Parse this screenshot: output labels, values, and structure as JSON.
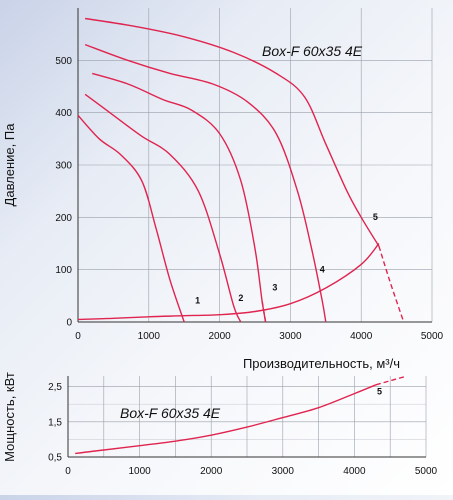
{
  "chart_data": [
    {
      "type": "line",
      "model_label": "Box-F 60x35 4E",
      "xlabel": "Производительность, м³/ч",
      "ylabel": "Давление, Па",
      "xlim": [
        0,
        5000
      ],
      "ylim": [
        0,
        600
      ],
      "xticks": [
        0,
        1000,
        2000,
        3000,
        4000,
        5000
      ],
      "yticks": [
        0,
        100,
        200,
        300,
        400,
        500
      ],
      "grid": true,
      "line_color": "#e0244f",
      "series": [
        {
          "name": "1",
          "points": [
            [
              0,
              395
            ],
            [
              300,
              350
            ],
            [
              600,
              320
            ],
            [
              900,
              270
            ],
            [
              1100,
              180
            ],
            [
              1300,
              80
            ],
            [
              1500,
              0
            ]
          ]
        },
        {
          "name": "2",
          "points": [
            [
              100,
              435
            ],
            [
              500,
              395
            ],
            [
              900,
              355
            ],
            [
              1300,
              320
            ],
            [
              1700,
              250
            ],
            [
              2000,
              130
            ],
            [
              2200,
              30
            ],
            [
              2300,
              0
            ]
          ]
        },
        {
          "name": "3",
          "points": [
            [
              200,
              475
            ],
            [
              700,
              455
            ],
            [
              1200,
              425
            ],
            [
              1600,
              405
            ],
            [
              2000,
              360
            ],
            [
              2300,
              270
            ],
            [
              2500,
              140
            ],
            [
              2600,
              40
            ],
            [
              2650,
              0
            ]
          ]
        },
        {
          "name": "4",
          "points": [
            [
              100,
              530
            ],
            [
              700,
              500
            ],
            [
              1300,
              475
            ],
            [
              1900,
              455
            ],
            [
              2400,
              420
            ],
            [
              2800,
              360
            ],
            [
              3100,
              250
            ],
            [
              3300,
              140
            ],
            [
              3450,
              40
            ],
            [
              3500,
              0
            ]
          ]
        },
        {
          "name": "5",
          "points": [
            [
              100,
              580
            ],
            [
              800,
              565
            ],
            [
              1500,
              545
            ],
            [
              2200,
              515
            ],
            [
              2800,
              475
            ],
            [
              3200,
              430
            ],
            [
              3500,
              340
            ],
            [
              3800,
              250
            ],
            [
              4000,
              200
            ],
            [
              4250,
              145
            ]
          ]
        }
      ],
      "dashed_extensions": [
        {
          "series": "3",
          "points": [
            [
              2600,
              40
            ],
            [
              2650,
              0
            ]
          ]
        },
        {
          "series": "5",
          "points": [
            [
              4250,
              145
            ],
            [
              4400,
              80
            ],
            [
              4600,
              0
            ]
          ]
        }
      ],
      "system_curve": {
        "points": [
          [
            0,
            5
          ],
          [
            500,
            7
          ],
          [
            1000,
            10
          ],
          [
            1500,
            12
          ],
          [
            2000,
            14
          ],
          [
            2500,
            20
          ],
          [
            3000,
            35
          ],
          [
            3500,
            65
          ],
          [
            4000,
            110
          ],
          [
            4250,
            150
          ]
        ]
      },
      "curve_labels": [
        {
          "text": "1",
          "x": 1690,
          "y": 35
        },
        {
          "text": "2",
          "x": 2300,
          "y": 40
        },
        {
          "text": "3",
          "x": 2780,
          "y": 60
        },
        {
          "text": "4",
          "x": 3450,
          "y": 95
        },
        {
          "text": "5",
          "x": 4200,
          "y": 195
        }
      ]
    },
    {
      "type": "line",
      "model_label": "Box-F 60x35 4E",
      "xlabel": "",
      "ylabel": "Мощность, кВт",
      "xlim": [
        0,
        5000
      ],
      "ylim": [
        0.5,
        2.8
      ],
      "xticks": [
        0,
        1000,
        2000,
        3000,
        4000,
        5000
      ],
      "yticks": [
        0.5,
        1.5,
        2.5
      ],
      "ytick_labels": [
        "0,5",
        "1,5",
        "2,5"
      ],
      "grid": true,
      "line_color": "#e0244f",
      "series": [
        {
          "name": "5",
          "points": [
            [
              100,
              0.6
            ],
            [
              500,
              0.7
            ],
            [
              1000,
              0.82
            ],
            [
              1500,
              0.95
            ],
            [
              2000,
              1.12
            ],
            [
              2500,
              1.35
            ],
            [
              3000,
              1.62
            ],
            [
              3500,
              1.9
            ],
            [
              4000,
              2.3
            ],
            [
              4300,
              2.55
            ]
          ]
        }
      ],
      "dashed_extension": {
        "points": [
          [
            4300,
            2.55
          ],
          [
            4700,
            2.78
          ]
        ]
      },
      "curve_labels": [
        {
          "text": "5",
          "x": 4350,
          "y": 2.28
        }
      ]
    }
  ]
}
